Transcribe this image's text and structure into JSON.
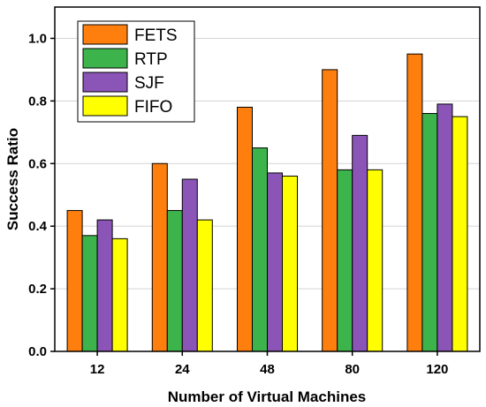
{
  "chart_data": {
    "type": "bar",
    "title": "",
    "xlabel": "Number of Virtual Machines",
    "ylabel": "Success Ratio",
    "categories": [
      "12",
      "24",
      "48",
      "80",
      "120"
    ],
    "ylim": [
      0,
      1.1
    ],
    "yticks": [
      "0.0",
      "0.2",
      "0.4",
      "0.6",
      "0.8",
      "1.0"
    ],
    "grid": true,
    "legend_position": "top-left",
    "series": [
      {
        "name": "FETS",
        "color": "#FF7F0E",
        "values": [
          0.45,
          0.6,
          0.78,
          0.9,
          0.95
        ]
      },
      {
        "name": "RTP",
        "color": "#3CB44B",
        "values": [
          0.37,
          0.45,
          0.65,
          0.58,
          0.76
        ]
      },
      {
        "name": "SJF",
        "color": "#8B55B8",
        "values": [
          0.42,
          0.55,
          0.57,
          0.69,
          0.79
        ]
      },
      {
        "name": "FIFO",
        "color": "#FFFF00",
        "values": [
          0.36,
          0.42,
          0.56,
          0.58,
          0.75
        ]
      }
    ]
  }
}
